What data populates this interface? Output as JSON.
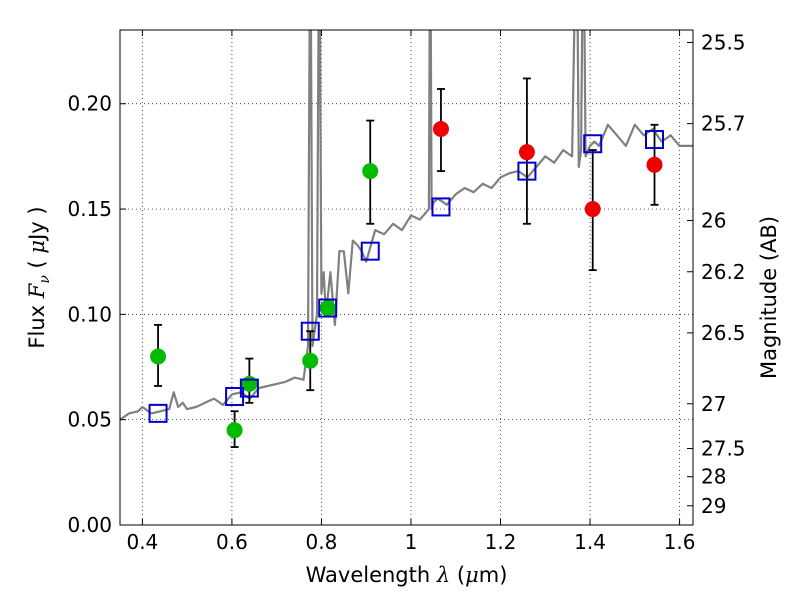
{
  "chart_data": {
    "type": "scatter",
    "xlabel": {
      "text": "Wavelength",
      "lambda": "λ",
      "unit_open": "(",
      "mu": "μ",
      "unit_rest": "m)"
    },
    "ylabel": {
      "text": "Flux",
      "symbol": "F",
      "subscript": "ν",
      "unit_open": "(",
      "mu": "μ",
      "unit_rest": "Jy",
      "unit_close": ")"
    },
    "ylabel_right": "Magnitude (AB)",
    "xlim": [
      0.35,
      1.63
    ],
    "ylim": [
      0.0,
      0.235
    ],
    "grid": true,
    "xticks": [
      {
        "value": 0.4,
        "label": "0.4"
      },
      {
        "value": 0.6,
        "label": "0.6"
      },
      {
        "value": 0.8,
        "label": "0.8"
      },
      {
        "value": 1.0,
        "label": "1"
      },
      {
        "value": 1.2,
        "label": "1.2"
      },
      {
        "value": 1.4,
        "label": "1.4"
      },
      {
        "value": 1.6,
        "label": "1.6"
      }
    ],
    "yticks": [
      {
        "value": 0.0,
        "label": "0.00"
      },
      {
        "value": 0.05,
        "label": "0.05"
      },
      {
        "value": 0.1,
        "label": "0.10"
      },
      {
        "value": 0.15,
        "label": "0.15"
      },
      {
        "value": 0.2,
        "label": "0.20"
      }
    ],
    "right_ticks": [
      {
        "mag": 25.5,
        "label": "25.5"
      },
      {
        "mag": 25.7,
        "label": "25.7"
      },
      {
        "mag": 26,
        "label": "26"
      },
      {
        "mag": 26.2,
        "label": "26.2"
      },
      {
        "mag": 26.5,
        "label": "26.5"
      },
      {
        "mag": 27,
        "label": "27"
      },
      {
        "mag": 27.5,
        "label": "27.5"
      },
      {
        "mag": 28,
        "label": "28"
      },
      {
        "mag": 29,
        "label": "29"
      }
    ],
    "colors": {
      "model": "#808080",
      "green": "#00bb00",
      "red": "#ee0000",
      "box": "#0000cc",
      "error": "#000000",
      "grid": "#000000"
    },
    "series": [
      {
        "kind": "model_spectrum",
        "color": "#808080",
        "x": [
          0.35,
          0.37,
          0.39,
          0.4,
          0.42,
          0.44,
          0.46,
          0.47,
          0.48,
          0.49,
          0.5,
          0.52,
          0.54,
          0.56,
          0.58,
          0.6,
          0.62,
          0.64,
          0.66,
          0.68,
          0.7,
          0.72,
          0.74,
          0.76,
          0.77,
          0.775,
          0.78,
          0.79,
          0.795,
          0.8,
          0.805,
          0.81,
          0.82,
          0.83,
          0.84,
          0.85,
          0.86,
          0.87,
          0.88,
          0.89,
          0.9,
          0.92,
          0.94,
          0.96,
          0.98,
          1.0,
          1.02,
          1.04,
          1.043,
          1.046,
          1.05,
          1.06,
          1.08,
          1.1,
          1.12,
          1.14,
          1.16,
          1.18,
          1.2,
          1.22,
          1.24,
          1.26,
          1.28,
          1.3,
          1.32,
          1.34,
          1.36,
          1.37,
          1.375,
          1.38,
          1.385,
          1.39,
          1.4,
          1.41,
          1.42,
          1.44,
          1.46,
          1.48,
          1.5,
          1.52,
          1.54,
          1.56,
          1.58,
          1.6,
          1.63
        ],
        "y": [
          0.05,
          0.053,
          0.054,
          0.056,
          0.053,
          0.054,
          0.055,
          0.063,
          0.056,
          0.058,
          0.055,
          0.056,
          0.058,
          0.06,
          0.057,
          0.062,
          0.063,
          0.06,
          0.065,
          0.066,
          0.067,
          0.068,
          0.07,
          0.069,
          0.085,
          0.3,
          0.085,
          0.1,
          0.3,
          0.11,
          0.12,
          0.1,
          0.12,
          0.095,
          0.13,
          0.13,
          0.11,
          0.135,
          0.133,
          0.13,
          0.125,
          0.14,
          0.138,
          0.143,
          0.14,
          0.147,
          0.145,
          0.15,
          0.3,
          0.15,
          0.153,
          0.155,
          0.152,
          0.157,
          0.16,
          0.158,
          0.162,
          0.16,
          0.165,
          0.167,
          0.168,
          0.165,
          0.17,
          0.175,
          0.172,
          0.178,
          0.175,
          0.3,
          0.17,
          0.178,
          0.3,
          0.175,
          0.18,
          0.182,
          0.18,
          0.19,
          0.185,
          0.18,
          0.19,
          0.185,
          0.188,
          0.182,
          0.185,
          0.18,
          0.18
        ]
      },
      {
        "kind": "observed",
        "name": "",
        "color": "#00bb00",
        "points": [
          {
            "x": 0.435,
            "y": 0.08,
            "lo": 0.066,
            "hi": 0.095
          },
          {
            "x": 0.606,
            "y": 0.045,
            "lo": 0.037,
            "hi": 0.054
          },
          {
            "x": 0.639,
            "y": 0.067,
            "lo": 0.058,
            "hi": 0.079
          },
          {
            "x": 0.775,
            "y": 0.078,
            "lo": 0.064,
            "hi": 0.092
          },
          {
            "x": 0.814,
            "y": 0.103,
            "lo": 0.103,
            "hi": 0.103
          },
          {
            "x": 0.909,
            "y": 0.168,
            "lo": 0.143,
            "hi": 0.192
          }
        ]
      },
      {
        "kind": "observed",
        "name": "",
        "color": "#ee0000",
        "points": [
          {
            "x": 1.067,
            "y": 0.188,
            "lo": 0.168,
            "hi": 0.207
          },
          {
            "x": 1.259,
            "y": 0.177,
            "lo": 0.143,
            "hi": 0.212
          },
          {
            "x": 1.406,
            "y": 0.15,
            "lo": 0.121,
            "hi": 0.178
          },
          {
            "x": 1.544,
            "y": 0.171,
            "lo": 0.152,
            "hi": 0.19
          }
        ]
      },
      {
        "kind": "model_photometry",
        "name": "",
        "color": "#0000cc",
        "points": [
          {
            "x": 0.435,
            "y": 0.053
          },
          {
            "x": 0.606,
            "y": 0.061
          },
          {
            "x": 0.639,
            "y": 0.065
          },
          {
            "x": 0.775,
            "y": 0.092
          },
          {
            "x": 0.814,
            "y": 0.103
          },
          {
            "x": 0.909,
            "y": 0.13
          },
          {
            "x": 1.067,
            "y": 0.151
          },
          {
            "x": 1.259,
            "y": 0.168
          },
          {
            "x": 1.406,
            "y": 0.181
          },
          {
            "x": 1.544,
            "y": 0.183
          }
        ]
      }
    ]
  }
}
